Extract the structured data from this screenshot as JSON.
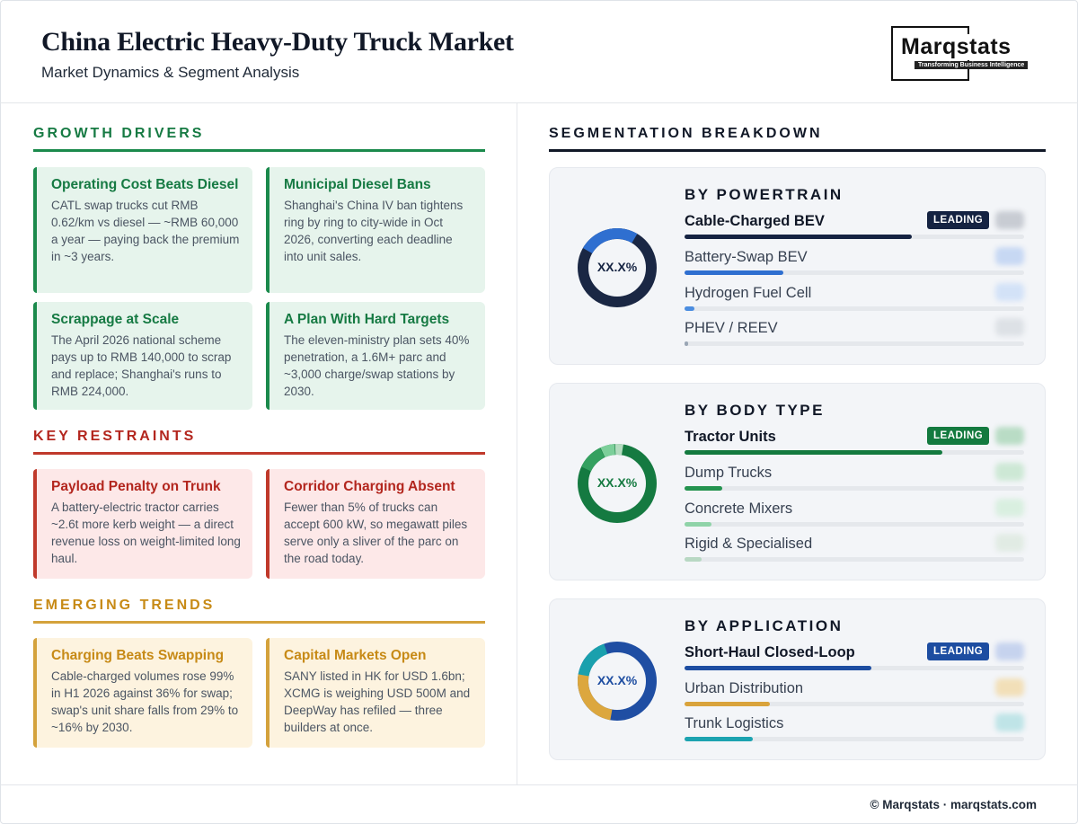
{
  "header": {
    "title": "China Electric Heavy-Duty Truck Market",
    "subtitle": "Market Dynamics & Segment Analysis"
  },
  "logo": {
    "word": "Marqstats",
    "tagline": "Transforming Business Intelligence"
  },
  "drivers": {
    "heading": "GROWTH DRIVERS",
    "cards": [
      {
        "title": "Operating Cost Beats Diesel",
        "text": "CATL swap trucks cut RMB 0.62/km vs diesel — ~RMB 60,000 a year — paying back the premium in ~3 years."
      },
      {
        "title": "Municipal Diesel Bans",
        "text": "Shanghai's China IV ban tightens ring by ring to city-wide in Oct 2026, converting each deadline into unit sales."
      },
      {
        "title": "Scrappage at Scale",
        "text": "The April 2026 national scheme pays up to RMB 140,000 to scrap and replace; Shanghai's runs to RMB 224,000."
      },
      {
        "title": "A Plan With Hard Targets",
        "text": "The eleven-ministry plan sets 40% penetration, a 1.6M+ parc and ~3,000 charge/swap stations by 2030."
      }
    ]
  },
  "restraints": {
    "heading": "KEY RESTRAINTS",
    "cards": [
      {
        "title": "Payload Penalty on Trunk",
        "text": "A battery-electric tractor carries ~2.6t more kerb weight — a direct revenue loss on weight-limited long haul."
      },
      {
        "title": "Corridor Charging Absent",
        "text": "Fewer than 5% of trucks can accept 600 kW, so megawatt piles serve only a sliver of the parc on the road today."
      }
    ]
  },
  "trends": {
    "heading": "EMERGING TRENDS",
    "cards": [
      {
        "title": "Charging Beats Swapping",
        "text": "Cable-charged volumes rose 99% in H1 2026 against 36% for swap; swap's unit share falls from 29% to ~16% by 2030."
      },
      {
        "title": "Capital Markets Open",
        "text": "SANY listed in HK for USD 1.6bn; XCMG is weighing USD 500M and DeepWay has refiled — three builders at once."
      }
    ]
  },
  "segmentation": {
    "heading": "SEGMENTATION BREAKDOWN",
    "leading_label": "LEADING",
    "powertrain": {
      "heading": "BY POWERTRAIN",
      "donut_label": "XX.X%",
      "colors": [
        "#1a2744",
        "#2f6fd0"
      ],
      "rows": [
        {
          "label": "Cable-Charged BEV",
          "share": 0.67,
          "color": "#152342",
          "leading": true
        },
        {
          "label": "Battery-Swap BEV",
          "share": 0.29,
          "color": "#2f6fd0"
        },
        {
          "label": "Hydrogen Fuel Cell",
          "share": 0.03,
          "color": "#4b8de0"
        },
        {
          "label": "PHEV / REEV",
          "share": 0.01,
          "color": "#9aa6b5"
        }
      ]
    },
    "body_type": {
      "heading": "BY BODY TYPE",
      "donut_label": "XX.X%",
      "colors": [
        "#157a41",
        "#34a060",
        "#7ccf9a",
        "#b4dcc0"
      ],
      "rows": [
        {
          "label": "Tractor Units",
          "share": 0.76,
          "color": "#137a3f",
          "leading": true
        },
        {
          "label": "Dump Trucks",
          "share": 0.11,
          "color": "#24934f"
        },
        {
          "label": "Concrete Mixers",
          "share": 0.08,
          "color": "#8fd3a8"
        },
        {
          "label": "Rigid & Specialised",
          "share": 0.05,
          "color": "#b8d8c3"
        }
      ]
    },
    "application": {
      "heading": "BY APPLICATION",
      "donut_label": "XX.X%",
      "colors": [
        "#1f4ea3",
        "#dca73e",
        "#1aa0ad"
      ],
      "rows": [
        {
          "label": "Short-Haul Closed-Loop",
          "share": 0.55,
          "color": "#1d4da1",
          "leading": true
        },
        {
          "label": "Urban Distribution",
          "share": 0.25,
          "color": "#d9a33b"
        },
        {
          "label": "Trunk Logistics",
          "share": 0.2,
          "color": "#1ca3b0"
        }
      ]
    }
  },
  "footer": {
    "text": "© Marqstats · marqstats.com"
  }
}
